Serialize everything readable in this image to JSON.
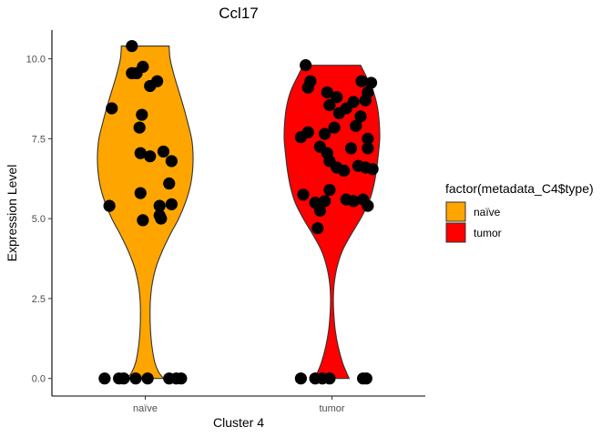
{
  "chart_data": {
    "type": "violin",
    "title": "Ccl17",
    "xlabel": "Cluster 4",
    "ylabel": "Expression Level",
    "categories": [
      "naïve",
      "tumor"
    ],
    "ylim": [
      -0.55,
      10.9
    ],
    "yticks": [
      0.0,
      2.5,
      5.0,
      7.5,
      10.0
    ],
    "ytick_labels": [
      "0.0",
      "2.5",
      "5.0",
      "7.5",
      "10.0"
    ],
    "grid": false,
    "legend": {
      "title": "factor(metadata_C4$type)",
      "position": "right",
      "entries": [
        {
          "label": "naïve",
          "color": "#FFA500"
        },
        {
          "label": "tumor",
          "color": "#FF0000"
        }
      ]
    },
    "series": [
      {
        "category": "naïve",
        "color": "#FFA500",
        "ymin": 0.0,
        "ymax": 10.4,
        "density_profile": [
          [
            0.0,
            0.38
          ],
          [
            0.2,
            0.28
          ],
          [
            0.5,
            0.2
          ],
          [
            1.0,
            0.14
          ],
          [
            1.5,
            0.11
          ],
          [
            2.0,
            0.1
          ],
          [
            2.5,
            0.11
          ],
          [
            3.0,
            0.15
          ],
          [
            3.5,
            0.23
          ],
          [
            4.0,
            0.36
          ],
          [
            4.5,
            0.52
          ],
          [
            5.0,
            0.7
          ],
          [
            5.5,
            0.84
          ],
          [
            6.0,
            0.94
          ],
          [
            6.5,
            0.99
          ],
          [
            7.0,
            1.0
          ],
          [
            7.5,
            0.97
          ],
          [
            8.0,
            0.89
          ],
          [
            8.5,
            0.8
          ],
          [
            9.0,
            0.7
          ],
          [
            9.5,
            0.6
          ],
          [
            10.0,
            0.52
          ],
          [
            10.4,
            0.5
          ]
        ],
        "points": [
          {
            "jitter": -0.28,
            "y": 10.4
          },
          {
            "jitter": -0.05,
            "y": 9.75
          },
          {
            "jitter": -0.28,
            "y": 9.55
          },
          {
            "jitter": -0.18,
            "y": 9.55
          },
          {
            "jitter": 0.25,
            "y": 9.3
          },
          {
            "jitter": 0.1,
            "y": 9.15
          },
          {
            "jitter": -0.7,
            "y": 8.45
          },
          {
            "jitter": -0.07,
            "y": 8.25
          },
          {
            "jitter": -0.12,
            "y": 7.85
          },
          {
            "jitter": 0.38,
            "y": 7.1
          },
          {
            "jitter": -0.1,
            "y": 7.05
          },
          {
            "jitter": 0.1,
            "y": 6.95
          },
          {
            "jitter": 0.55,
            "y": 6.8
          },
          {
            "jitter": 0.5,
            "y": 6.1
          },
          {
            "jitter": -0.1,
            "y": 5.8
          },
          {
            "jitter": -0.75,
            "y": 5.4
          },
          {
            "jitter": 0.3,
            "y": 5.4
          },
          {
            "jitter": 0.55,
            "y": 5.45
          },
          {
            "jitter": 0.3,
            "y": 5.1
          },
          {
            "jitter": 0.33,
            "y": 5.0
          },
          {
            "jitter": -0.05,
            "y": 4.95
          },
          {
            "jitter": -0.85,
            "y": 0.0
          },
          {
            "jitter": -0.55,
            "y": 0.0
          },
          {
            "jitter": -0.45,
            "y": 0.0
          },
          {
            "jitter": -0.2,
            "y": 0.0
          },
          {
            "jitter": 0.05,
            "y": 0.0
          },
          {
            "jitter": 0.5,
            "y": 0.0
          },
          {
            "jitter": 0.65,
            "y": 0.0
          },
          {
            "jitter": 0.75,
            "y": 0.0
          }
        ]
      },
      {
        "category": "tumor",
        "color": "#FF0000",
        "ymin": 0.0,
        "ymax": 9.8,
        "density_profile": [
          [
            0.0,
            0.36
          ],
          [
            0.2,
            0.3
          ],
          [
            0.5,
            0.22
          ],
          [
            1.0,
            0.13
          ],
          [
            1.5,
            0.07
          ],
          [
            2.0,
            0.04
          ],
          [
            2.5,
            0.03
          ],
          [
            3.0,
            0.05
          ],
          [
            3.5,
            0.11
          ],
          [
            4.0,
            0.22
          ],
          [
            4.5,
            0.4
          ],
          [
            5.0,
            0.6
          ],
          [
            5.5,
            0.77
          ],
          [
            6.0,
            0.87
          ],
          [
            6.5,
            0.93
          ],
          [
            7.0,
            0.97
          ],
          [
            7.5,
            1.0
          ],
          [
            8.0,
            0.99
          ],
          [
            8.5,
            0.95
          ],
          [
            9.0,
            0.86
          ],
          [
            9.5,
            0.7
          ],
          [
            9.8,
            0.6
          ]
        ],
        "points": [
          {
            "jitter": -0.55,
            "y": 9.8
          },
          {
            "jitter": -0.45,
            "y": 9.3
          },
          {
            "jitter": -0.5,
            "y": 9.1
          },
          {
            "jitter": 0.62,
            "y": 9.3
          },
          {
            "jitter": 0.82,
            "y": 9.25
          },
          {
            "jitter": -0.1,
            "y": 8.95
          },
          {
            "jitter": 0.75,
            "y": 8.95
          },
          {
            "jitter": 0.1,
            "y": 8.8
          },
          {
            "jitter": 0.45,
            "y": 8.65
          },
          {
            "jitter": 0.7,
            "y": 8.7
          },
          {
            "jitter": -0.05,
            "y": 8.55
          },
          {
            "jitter": 0.3,
            "y": 8.45
          },
          {
            "jitter": 0.15,
            "y": 8.3
          },
          {
            "jitter": 0.6,
            "y": 8.2
          },
          {
            "jitter": 0.5,
            "y": 7.9
          },
          {
            "jitter": 0.05,
            "y": 7.85
          },
          {
            "jitter": -0.5,
            "y": 7.7
          },
          {
            "jitter": -0.65,
            "y": 7.55
          },
          {
            "jitter": -0.15,
            "y": 7.65
          },
          {
            "jitter": 0.75,
            "y": 7.5
          },
          {
            "jitter": -0.25,
            "y": 7.25
          },
          {
            "jitter": -0.1,
            "y": 7.05
          },
          {
            "jitter": 0.4,
            "y": 7.2
          },
          {
            "jitter": 0.75,
            "y": 7.2
          },
          {
            "jitter": -0.05,
            "y": 6.8
          },
          {
            "jitter": 0.1,
            "y": 6.6
          },
          {
            "jitter": 0.25,
            "y": 6.5
          },
          {
            "jitter": 0.55,
            "y": 6.65
          },
          {
            "jitter": 0.7,
            "y": 6.6
          },
          {
            "jitter": 0.85,
            "y": 6.55
          },
          {
            "jitter": -0.6,
            "y": 5.75
          },
          {
            "jitter": -0.05,
            "y": 5.9
          },
          {
            "jitter": -0.15,
            "y": 5.55
          },
          {
            "jitter": -0.35,
            "y": 5.5
          },
          {
            "jitter": -0.25,
            "y": 5.25
          },
          {
            "jitter": 0.3,
            "y": 5.6
          },
          {
            "jitter": 0.45,
            "y": 5.55
          },
          {
            "jitter": 0.65,
            "y": 5.6
          },
          {
            "jitter": 0.75,
            "y": 5.4
          },
          {
            "jitter": -0.3,
            "y": 4.7
          },
          {
            "jitter": -0.65,
            "y": 0.0
          },
          {
            "jitter": -0.35,
            "y": 0.0
          },
          {
            "jitter": -0.2,
            "y": 0.0
          },
          {
            "jitter": -0.05,
            "y": 0.0
          },
          {
            "jitter": 0.65,
            "y": 0.0
          },
          {
            "jitter": 0.72,
            "y": 0.0
          }
        ]
      }
    ]
  }
}
